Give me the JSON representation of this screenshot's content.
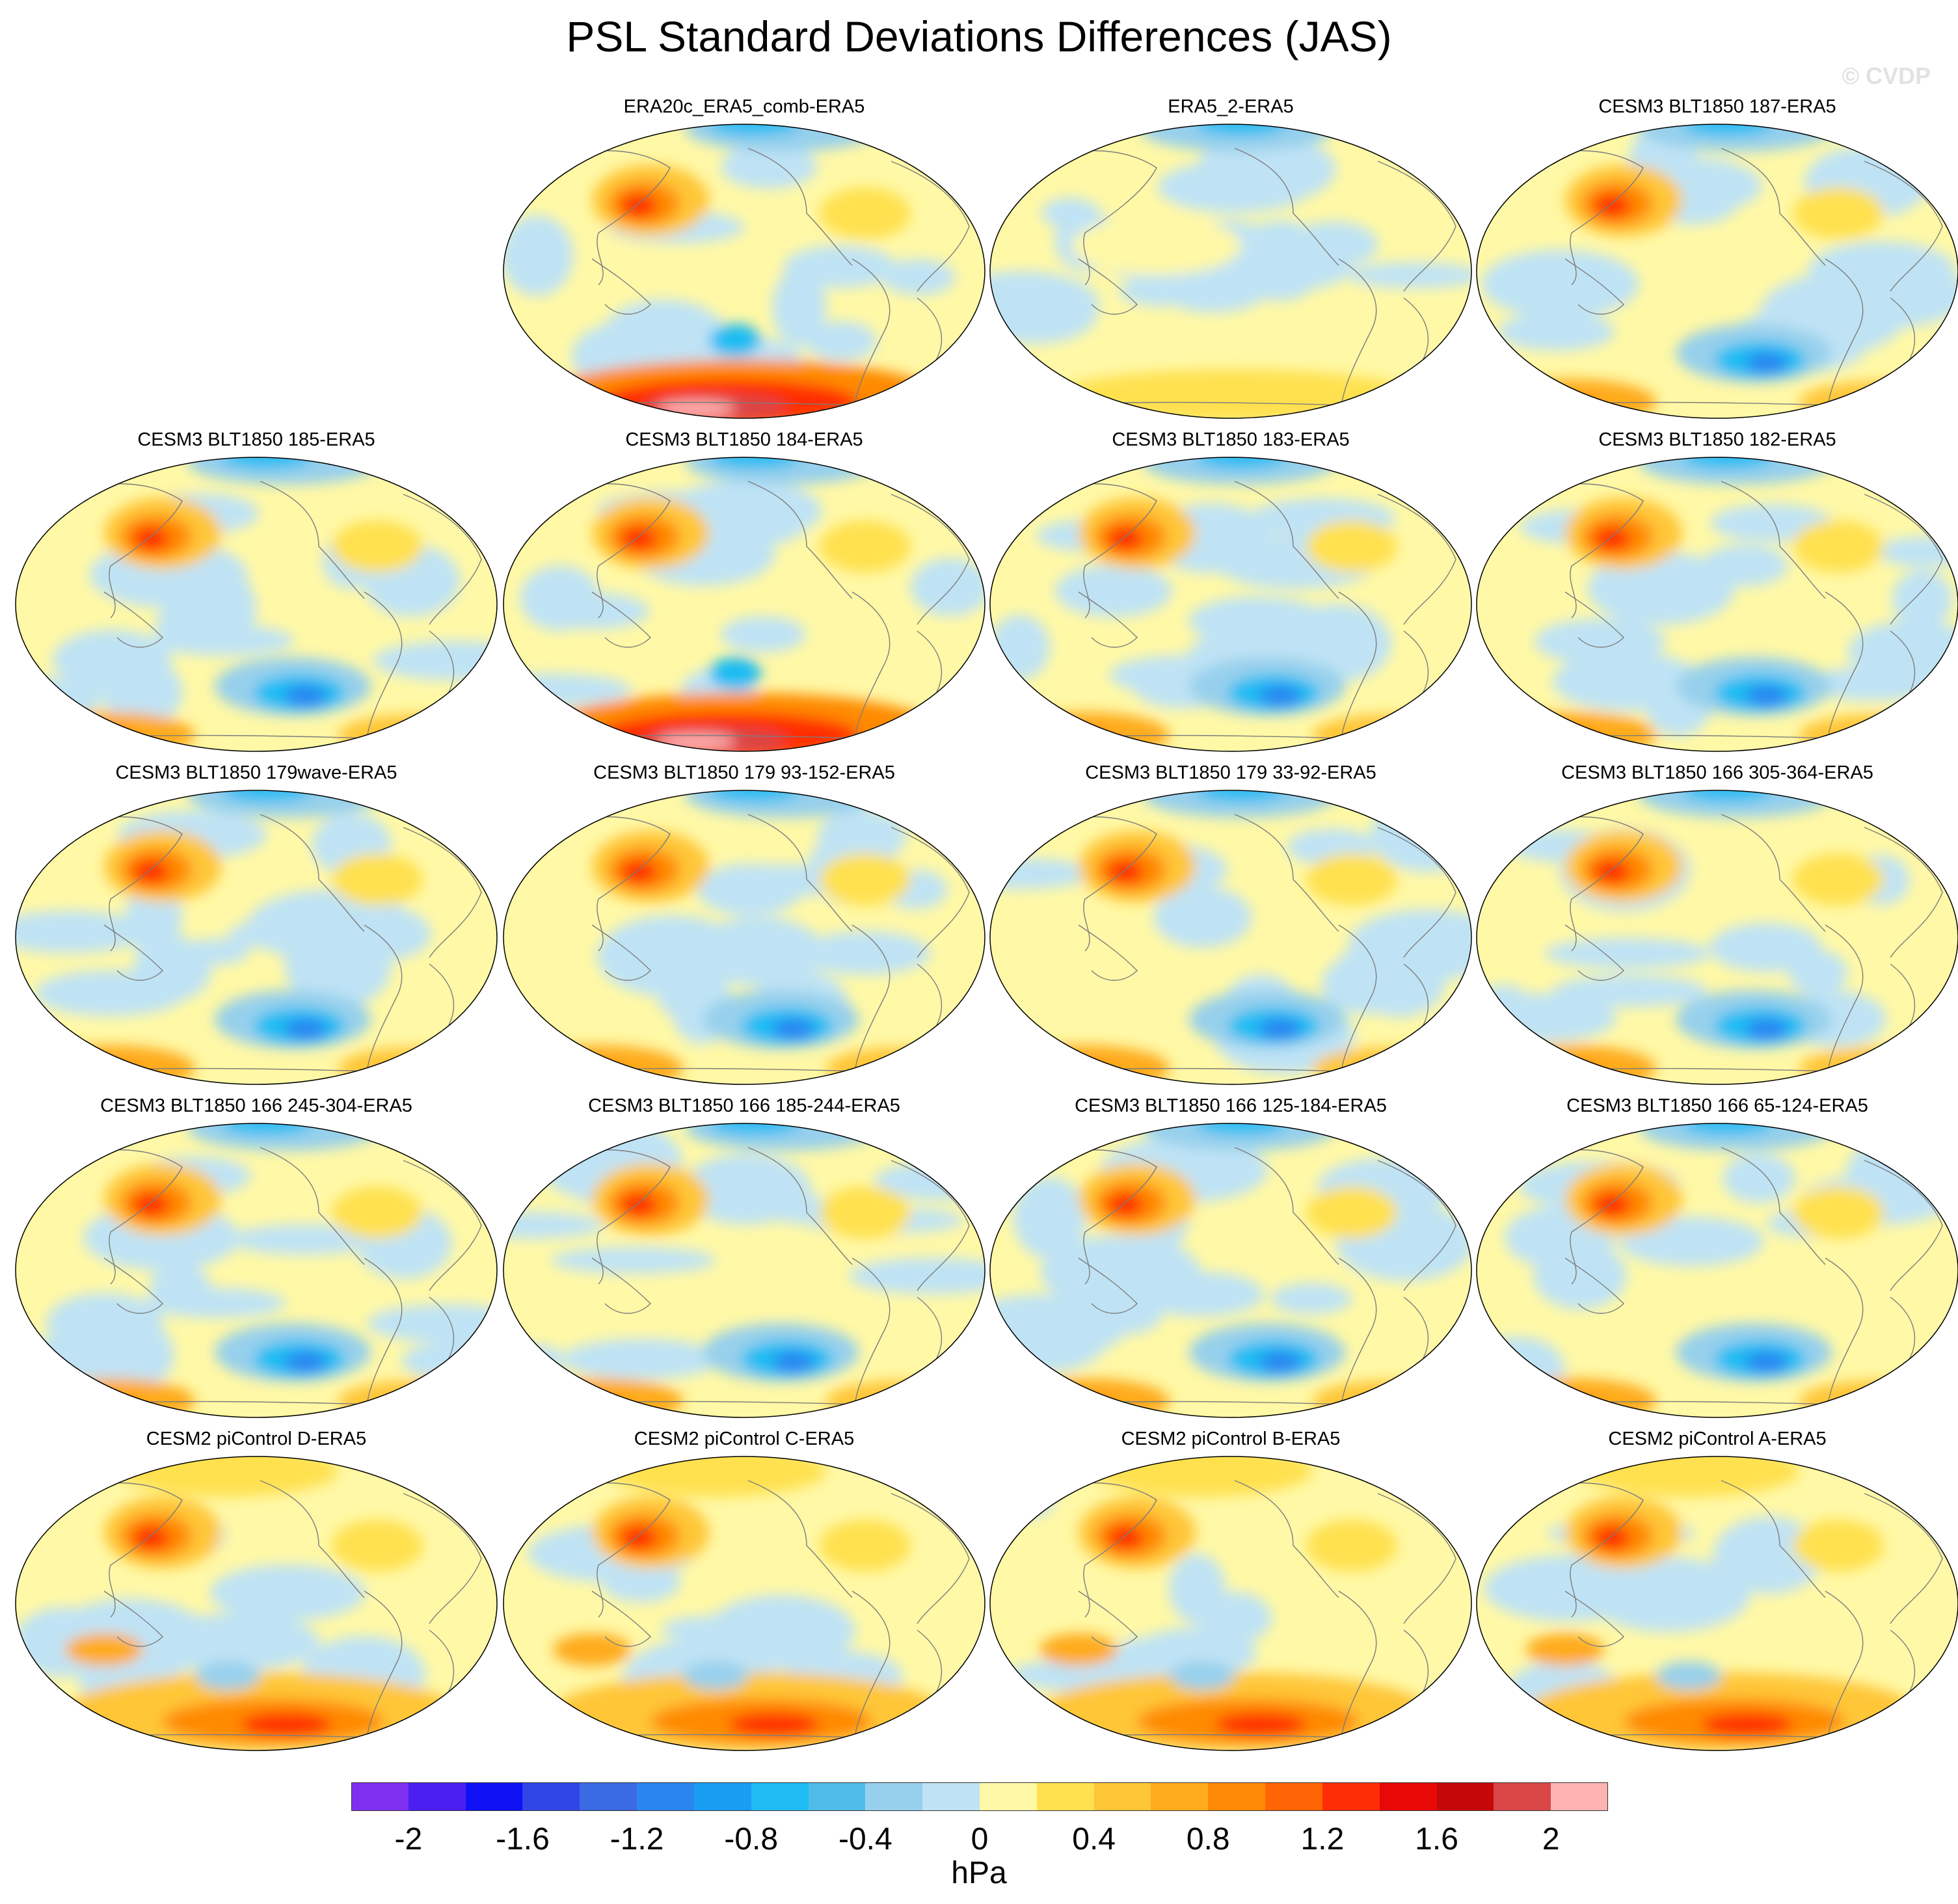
{
  "title": "PSL Standard Deviations Differences (JAS)",
  "watermark": "© CVDP",
  "panels": [
    {
      "label": "ERA20c_ERA5_comb-ERA5",
      "tone": "ant-red"
    },
    {
      "label": "ERA5_2-ERA5",
      "tone": "flat"
    },
    {
      "label": "CESM3 BLT1850 187-ERA5",
      "tone": "model"
    },
    {
      "label": "CESM3 BLT1850 185-ERA5",
      "tone": "model"
    },
    {
      "label": "CESM3 BLT1850 184-ERA5",
      "tone": "ant-red"
    },
    {
      "label": "CESM3 BLT1850 183-ERA5",
      "tone": "model"
    },
    {
      "label": "CESM3 BLT1850 182-ERA5",
      "tone": "model"
    },
    {
      "label": "CESM3 BLT1850 179wave-ERA5",
      "tone": "model"
    },
    {
      "label": "CESM3 BLT1850 179 93-152-ERA5",
      "tone": "model"
    },
    {
      "label": "CESM3 BLT1850 179 33-92-ERA5",
      "tone": "model"
    },
    {
      "label": "CESM3 BLT1850 166 305-364-ERA5",
      "tone": "model"
    },
    {
      "label": "CESM3 BLT1850 166 245-304-ERA5",
      "tone": "model"
    },
    {
      "label": "CESM3 BLT1850 166 185-244-ERA5",
      "tone": "model"
    },
    {
      "label": "CESM3 BLT1850 166 125-184-ERA5",
      "tone": "model"
    },
    {
      "label": "CESM3 BLT1850 166 65-124-ERA5",
      "tone": "model"
    },
    {
      "label": "CESM2 piControl D-ERA5",
      "tone": "warm"
    },
    {
      "label": "CESM2 piControl C-ERA5",
      "tone": "warm"
    },
    {
      "label": "CESM2 piControl B-ERA5",
      "tone": "warm"
    },
    {
      "label": "CESM2 piControl A-ERA5",
      "tone": "warm"
    }
  ],
  "colorbar": {
    "units": "hPa",
    "colors": [
      "#7f2ff0",
      "#4b1ff2",
      "#1010f5",
      "#3046e6",
      "#3a6ae4",
      "#2b85f1",
      "#199df2",
      "#1ebcf3",
      "#4fbde9",
      "#97d0ec",
      "#bfe3f5",
      "#fff8a6",
      "#ffe14f",
      "#ffc637",
      "#ffab1c",
      "#ff8a06",
      "#ff6504",
      "#ff2d05",
      "#e80806",
      "#c40707",
      "#d94646",
      "#ffb3b3"
    ],
    "tick_labels": [
      "-2",
      "-1.6",
      "-1.2",
      "-0.8",
      "-0.4",
      "0",
      "0.4",
      "0.8",
      "1.2",
      "1.6",
      "2"
    ],
    "tick_values": [
      -2,
      -1.6,
      -1.2,
      -0.8,
      -0.4,
      0,
      0.4,
      0.8,
      1.2,
      1.6,
      2
    ]
  }
}
